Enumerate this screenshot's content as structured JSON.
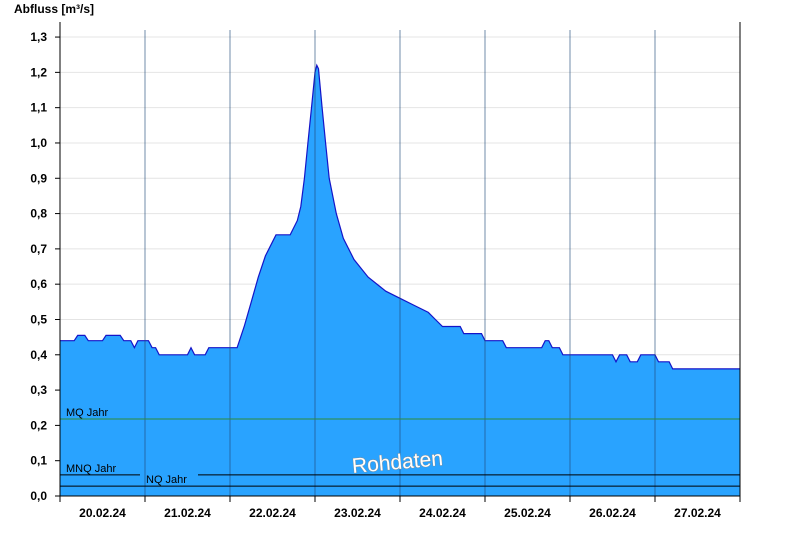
{
  "chart_data": {
    "type": "area",
    "title": "Abfluss [m³/s]",
    "watermark": "Rohdaten",
    "ylim": [
      0,
      1.32
    ],
    "y_ticks": [
      {
        "value": 0.0,
        "label": "0,0"
      },
      {
        "value": 0.1,
        "label": "0,1"
      },
      {
        "value": 0.2,
        "label": "0,2"
      },
      {
        "value": 0.3,
        "label": "0,3"
      },
      {
        "value": 0.4,
        "label": "0,4"
      },
      {
        "value": 0.5,
        "label": "0,5"
      },
      {
        "value": 0.6,
        "label": "0,6"
      },
      {
        "value": 0.7,
        "label": "0,7"
      },
      {
        "value": 0.8,
        "label": "0,8"
      },
      {
        "value": 0.9,
        "label": "0,9"
      },
      {
        "value": 1.0,
        "label": "1,0"
      },
      {
        "value": 1.1,
        "label": "1,1"
      },
      {
        "value": 1.2,
        "label": "1,2"
      },
      {
        "value": 1.3,
        "label": "1,3"
      }
    ],
    "x_range": [
      "20.02.24 00:00",
      "28.02.24 00:00"
    ],
    "x_ticks": [
      "20.02.24",
      "21.02.24",
      "22.02.24",
      "23.02.24",
      "24.02.24",
      "25.02.24",
      "26.02.24",
      "27.02.24"
    ],
    "day_ticks": [
      "20.02.24",
      "21.02.24",
      "22.02.24",
      "23.02.24",
      "24.02.24",
      "25.02.24",
      "26.02.24",
      "27.02.24",
      "28.02.24"
    ],
    "reference_lines": [
      {
        "label": "MQ Jahr",
        "value": 0.218,
        "color": "#2e8b3a"
      },
      {
        "label": "MNQ Jahr",
        "value": 0.06,
        "color": "#000000"
      },
      {
        "label": "NQ Jahr",
        "value": 0.028,
        "color": "#000000"
      }
    ],
    "series": [
      {
        "fill": "#29a3ff",
        "stroke": "#1414c8",
        "points": [
          [
            "20.02.24 00:00",
            0.44
          ],
          [
            "20.02.24 04:00",
            0.44
          ],
          [
            "20.02.24 05:00",
            0.455
          ],
          [
            "20.02.24 07:00",
            0.455
          ],
          [
            "20.02.24 08:00",
            0.44
          ],
          [
            "20.02.24 12:00",
            0.44
          ],
          [
            "20.02.24 13:00",
            0.455
          ],
          [
            "20.02.24 17:00",
            0.455
          ],
          [
            "20.02.24 18:00",
            0.44
          ],
          [
            "20.02.24 20:00",
            0.44
          ],
          [
            "20.02.24 21:00",
            0.42
          ],
          [
            "20.02.24 22:00",
            0.44
          ],
          [
            "21.02.24 01:00",
            0.44
          ],
          [
            "21.02.24 02:00",
            0.42
          ],
          [
            "21.02.24 03:00",
            0.42
          ],
          [
            "21.02.24 04:00",
            0.4
          ],
          [
            "21.02.24 12:00",
            0.4
          ],
          [
            "21.02.24 13:00",
            0.42
          ],
          [
            "21.02.24 14:00",
            0.4
          ],
          [
            "21.02.24 17:00",
            0.4
          ],
          [
            "21.02.24 18:00",
            0.42
          ],
          [
            "22.02.24 02:00",
            0.42
          ],
          [
            "22.02.24 04:00",
            0.48
          ],
          [
            "22.02.24 06:00",
            0.55
          ],
          [
            "22.02.24 08:00",
            0.62
          ],
          [
            "22.02.24 10:00",
            0.68
          ],
          [
            "22.02.24 12:00",
            0.72
          ],
          [
            "22.02.24 13:00",
            0.74
          ],
          [
            "22.02.24 17:00",
            0.74
          ],
          [
            "22.02.24 19:00",
            0.78
          ],
          [
            "22.02.24 20:00",
            0.82
          ],
          [
            "22.02.24 21:00",
            0.9
          ],
          [
            "22.02.24 22:00",
            1.0
          ],
          [
            "22.02.24 23:00",
            1.1
          ],
          [
            "23.02.24 00:00",
            1.2
          ],
          [
            "23.02.24 00:30",
            1.22
          ],
          [
            "23.02.24 01:00",
            1.21
          ],
          [
            "23.02.24 02:00",
            1.1
          ],
          [
            "23.02.24 03:00",
            1.0
          ],
          [
            "23.02.24 04:00",
            0.9
          ],
          [
            "23.02.24 06:00",
            0.8
          ],
          [
            "23.02.24 08:00",
            0.73
          ],
          [
            "23.02.24 11:00",
            0.67
          ],
          [
            "23.02.24 15:00",
            0.62
          ],
          [
            "23.02.24 20:00",
            0.58
          ],
          [
            "24.02.24 00:00",
            0.56
          ],
          [
            "24.02.24 04:00",
            0.54
          ],
          [
            "24.02.24 08:00",
            0.52
          ],
          [
            "24.02.24 10:00",
            0.5
          ],
          [
            "24.02.24 12:00",
            0.48
          ],
          [
            "24.02.24 17:00",
            0.48
          ],
          [
            "24.02.24 18:00",
            0.46
          ],
          [
            "24.02.24 23:00",
            0.46
          ],
          [
            "25.02.24 00:00",
            0.44
          ],
          [
            "25.02.24 05:00",
            0.44
          ],
          [
            "25.02.24 06:00",
            0.42
          ],
          [
            "25.02.24 16:00",
            0.42
          ],
          [
            "25.02.24 17:00",
            0.44
          ],
          [
            "25.02.24 18:00",
            0.44
          ],
          [
            "25.02.24 19:00",
            0.42
          ],
          [
            "25.02.24 21:00",
            0.42
          ],
          [
            "25.02.24 22:00",
            0.4
          ],
          [
            "26.02.24 12:00",
            0.4
          ],
          [
            "26.02.24 13:00",
            0.38
          ],
          [
            "26.02.24 14:00",
            0.4
          ],
          [
            "26.02.24 16:00",
            0.4
          ],
          [
            "26.02.24 17:00",
            0.38
          ],
          [
            "26.02.24 19:00",
            0.38
          ],
          [
            "26.02.24 20:00",
            0.4
          ],
          [
            "27.02.24 00:00",
            0.4
          ],
          [
            "27.02.24 01:00",
            0.38
          ],
          [
            "27.02.24 04:00",
            0.38
          ],
          [
            "27.02.24 05:00",
            0.36
          ],
          [
            "28.02.24 00:00",
            0.36
          ]
        ]
      }
    ],
    "grid": {
      "horizontal": true,
      "vertical_day_lines": true
    }
  }
}
